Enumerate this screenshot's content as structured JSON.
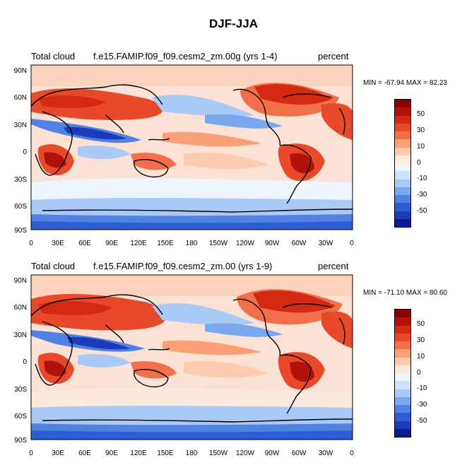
{
  "title": "DJF-JJA",
  "panels": [
    {
      "variable": "Total cloud",
      "case": "f.e15.FAMIP.f09_f09.cesm2_zm.00g (yrs 1-4)",
      "units": "percent",
      "stats": "MIN = -67.94 MAX =  82.23"
    },
    {
      "variable": "Total cloud",
      "case": "f.e15.FAMIP.f09_f09.cesm2_zm.00 (yrs 1-9)",
      "units": "percent",
      "stats": "MIN = -71.10 MAX =  80.60"
    }
  ],
  "lat_labels": [
    "90N",
    "60N",
    "30N",
    "0",
    "30S",
    "60S",
    "90S"
  ],
  "lon_labels": [
    "0",
    "30E",
    "60E",
    "90E",
    "120E",
    "150E",
    "180",
    "150W",
    "120W",
    "90W",
    "60W",
    "30W",
    "0"
  ],
  "colorbar_labels": [
    "50",
    "30",
    "10",
    "0",
    "-10",
    "-30",
    "-50"
  ],
  "colorbar_colors": [
    "#8b0000",
    "#b0130b",
    "#d42a14",
    "#e8492a",
    "#f36f4b",
    "#f9a079",
    "#fccbb0",
    "#fde9dd",
    "#eef5ff",
    "#cfe2fb",
    "#a9c9f6",
    "#7aa8ee",
    "#4f82e3",
    "#2f5ed4",
    "#1b3bb8",
    "#0a1a8f"
  ]
}
